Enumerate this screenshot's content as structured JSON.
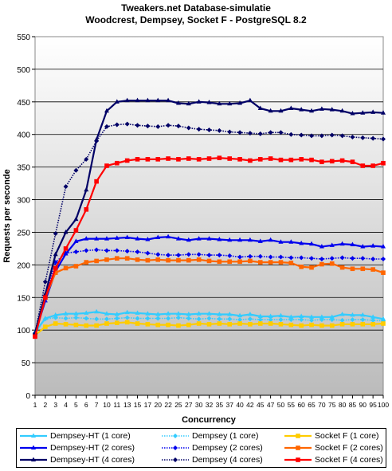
{
  "chart_data": {
    "type": "line",
    "title": "Tweakers.net Database-simulatie",
    "subtitle": "Woodcrest, Dempsey, Socket F - PostgreSQL 8.2",
    "xlabel": "Concurrency",
    "ylabel": "Requests per seconde",
    "ylim": [
      0,
      550
    ],
    "yticks": [
      0,
      50,
      100,
      150,
      200,
      250,
      300,
      350,
      400,
      450,
      500,
      550
    ],
    "grid": "horizontal",
    "legend_position": "bottom",
    "categories": [
      "1",
      "2",
      "3",
      "4",
      "5",
      "6",
      "7",
      "10",
      "11",
      "13",
      "15",
      "17",
      "20",
      "22",
      "25",
      "27",
      "30",
      "32",
      "35",
      "37",
      "40",
      "42",
      "45",
      "47",
      "50",
      "55",
      "60",
      "65",
      "70",
      "75",
      "80",
      "85",
      "90",
      "95",
      "100"
    ],
    "series": [
      {
        "name": "Dempsey-HT (1 core)",
        "color": "#33ccff",
        "marker": "triangle",
        "style": "solid",
        "values": [
          97,
          118,
          123,
          125,
          125,
          126,
          128,
          125,
          124,
          127,
          126,
          125,
          124,
          125,
          125,
          124,
          125,
          125,
          124,
          124,
          122,
          124,
          121,
          121,
          122,
          120,
          121,
          120,
          120,
          120,
          124,
          123,
          123,
          120,
          117
        ]
      },
      {
        "name": "Dempsey (1 core)",
        "color": "#33ccff",
        "marker": "diamond",
        "style": "dotted",
        "values": [
          96,
          117,
          119,
          118,
          119,
          118,
          117,
          117,
          118,
          119,
          118,
          118,
          118,
          118,
          119,
          118,
          117,
          118,
          117,
          117,
          116,
          117,
          116,
          116,
          116,
          116,
          116,
          115,
          116,
          116,
          115,
          116,
          116,
          115,
          114
        ]
      },
      {
        "name": "Socket F (1 core)",
        "color": "#ffcc00",
        "marker": "square",
        "style": "solid",
        "values": [
          92,
          105,
          110,
          109,
          108,
          107,
          107,
          110,
          111,
          112,
          110,
          109,
          108,
          108,
          107,
          108,
          110,
          109,
          110,
          109,
          110,
          109,
          110,
          110,
          109,
          108,
          107,
          108,
          107,
          107,
          109,
          109,
          109,
          109,
          110
        ]
      },
      {
        "name": "Dempsey-HT (2 cores)",
        "color": "#0000ee",
        "marker": "triangle",
        "style": "solid",
        "values": [
          95,
          145,
          190,
          217,
          236,
          240,
          240,
          240,
          241,
          242,
          240,
          239,
          242,
          243,
          240,
          238,
          240,
          240,
          239,
          238,
          238,
          238,
          236,
          238,
          235,
          235,
          233,
          232,
          228,
          230,
          232,
          231,
          228,
          229,
          228
        ]
      },
      {
        "name": "Dempsey (2 cores)",
        "color": "#0000ee",
        "marker": "diamond",
        "style": "dotted",
        "values": [
          94,
          152,
          204,
          218,
          220,
          222,
          223,
          222,
          222,
          221,
          220,
          218,
          216,
          215,
          215,
          216,
          216,
          215,
          215,
          214,
          212,
          213,
          213,
          212,
          212,
          211,
          211,
          210,
          209,
          210,
          211,
          210,
          210,
          209,
          209
        ]
      },
      {
        "name": "Socket F (2 cores)",
        "color": "#ff6600",
        "marker": "square",
        "style": "solid",
        "values": [
          91,
          150,
          188,
          195,
          198,
          204,
          206,
          208,
          210,
          210,
          208,
          207,
          208,
          207,
          207,
          207,
          208,
          206,
          205,
          205,
          205,
          206,
          204,
          204,
          204,
          203,
          197,
          196,
          201,
          202,
          196,
          194,
          194,
          193,
          188
        ]
      },
      {
        "name": "Dempsey-HT (4 cores)",
        "color": "#000066",
        "marker": "triangle",
        "style": "solid",
        "values": [
          96,
          155,
          216,
          250,
          270,
          315,
          392,
          436,
          450,
          452,
          452,
          452,
          452,
          452,
          448,
          447,
          450,
          449,
          447,
          447,
          448,
          452,
          440,
          436,
          436,
          440,
          438,
          436,
          439,
          438,
          436,
          432,
          433,
          434,
          433
        ]
      },
      {
        "name": "Dempsey (4 cores)",
        "color": "#000066",
        "marker": "diamond",
        "style": "dotted",
        "values": [
          95,
          174,
          248,
          320,
          345,
          362,
          390,
          412,
          415,
          416,
          414,
          413,
          412,
          414,
          413,
          410,
          408,
          407,
          406,
          404,
          403,
          402,
          401,
          403,
          403,
          400,
          399,
          398,
          398,
          399,
          398,
          396,
          395,
          394,
          393
        ]
      },
      {
        "name": "Socket F (4 cores)",
        "color": "#ff0000",
        "marker": "square",
        "style": "solid",
        "values": [
          90,
          150,
          195,
          225,
          253,
          285,
          328,
          352,
          356,
          360,
          362,
          362,
          362,
          363,
          362,
          363,
          362,
          363,
          364,
          363,
          362,
          360,
          362,
          363,
          361,
          361,
          362,
          361,
          358,
          359,
          360,
          358,
          352,
          352,
          356
        ]
      }
    ]
  }
}
